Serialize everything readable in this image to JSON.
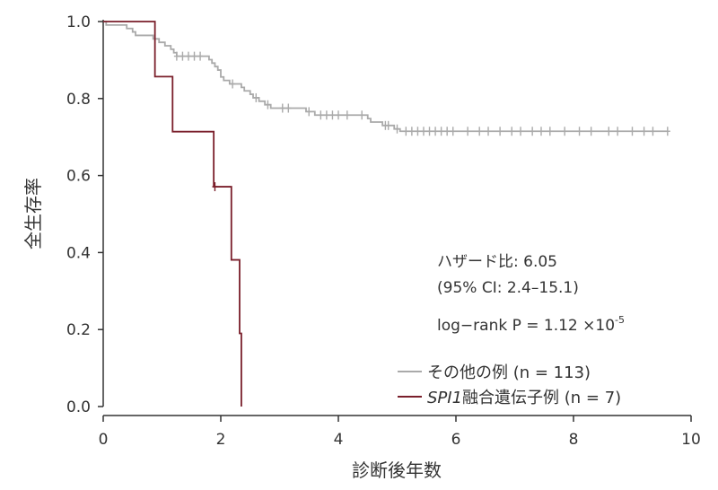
{
  "chart_data": {
    "type": "line",
    "subtype": "kaplan-meier",
    "title": "",
    "xlabel": "診断後年数",
    "ylabel": "全生存率",
    "xlim": [
      0,
      10
    ],
    "ylim": [
      0,
      1
    ],
    "xticks": [
      0,
      2,
      4,
      6,
      8,
      10
    ],
    "yticks": [
      0.0,
      0.2,
      0.4,
      0.6,
      0.8,
      1.0
    ],
    "xtick_labels": [
      "0",
      "2",
      "4",
      "6",
      "8",
      "10"
    ],
    "ytick_labels": [
      "0.0",
      "0.2",
      "0.4",
      "0.6",
      "0.8",
      "1.0"
    ],
    "grid": false,
    "legend_position": "bottom-right",
    "annotations": {
      "hazard_ratio": "ハザード比: 6.05",
      "ci": "(95% CI: 2.4–15.1)",
      "logrank": "log−rank P = 1.12 ×10",
      "logrank_exp": "-5"
    },
    "series": [
      {
        "name_prefix": "",
        "name_italic": "",
        "name": "その他の例 (n = 113)",
        "color": "#aaaaaa",
        "steps": [
          [
            0,
            1.0
          ],
          [
            0.05,
            0.991
          ],
          [
            0.4,
            0.982
          ],
          [
            0.5,
            0.973
          ],
          [
            0.55,
            0.964
          ],
          [
            0.85,
            0.955
          ],
          [
            0.95,
            0.946
          ],
          [
            1.05,
            0.937
          ],
          [
            1.15,
            0.928
          ],
          [
            1.2,
            0.919
          ],
          [
            1.25,
            0.91
          ],
          [
            1.8,
            0.901
          ],
          [
            1.85,
            0.892
          ],
          [
            1.9,
            0.883
          ],
          [
            1.95,
            0.874
          ],
          [
            2.0,
            0.856
          ],
          [
            2.05,
            0.847
          ],
          [
            2.15,
            0.838
          ],
          [
            2.35,
            0.829
          ],
          [
            2.4,
            0.82
          ],
          [
            2.5,
            0.811
          ],
          [
            2.55,
            0.802
          ],
          [
            2.65,
            0.793
          ],
          [
            2.75,
            0.784
          ],
          [
            2.85,
            0.775
          ],
          [
            3.45,
            0.766
          ],
          [
            3.6,
            0.757
          ],
          [
            4.05,
            0.757
          ],
          [
            4.5,
            0.748
          ],
          [
            4.55,
            0.739
          ],
          [
            4.75,
            0.73
          ],
          [
            4.95,
            0.721
          ],
          [
            5.05,
            0.715
          ],
          [
            9.6,
            0.715
          ]
        ],
        "censored": [
          [
            1.25,
            0.91
          ],
          [
            1.35,
            0.91
          ],
          [
            1.45,
            0.91
          ],
          [
            1.55,
            0.91
          ],
          [
            1.65,
            0.91
          ],
          [
            2.2,
            0.838
          ],
          [
            2.6,
            0.802
          ],
          [
            2.8,
            0.784
          ],
          [
            3.05,
            0.775
          ],
          [
            3.15,
            0.775
          ],
          [
            3.5,
            0.766
          ],
          [
            3.7,
            0.757
          ],
          [
            3.8,
            0.757
          ],
          [
            3.9,
            0.757
          ],
          [
            4.0,
            0.757
          ],
          [
            4.15,
            0.757
          ],
          [
            4.4,
            0.757
          ],
          [
            4.8,
            0.73
          ],
          [
            4.85,
            0.73
          ],
          [
            5.0,
            0.721
          ],
          [
            5.15,
            0.715
          ],
          [
            5.25,
            0.715
          ],
          [
            5.35,
            0.715
          ],
          [
            5.45,
            0.715
          ],
          [
            5.55,
            0.715
          ],
          [
            5.65,
            0.715
          ],
          [
            5.75,
            0.715
          ],
          [
            5.85,
            0.715
          ],
          [
            5.95,
            0.715
          ],
          [
            6.2,
            0.715
          ],
          [
            6.4,
            0.715
          ],
          [
            6.55,
            0.715
          ],
          [
            6.75,
            0.715
          ],
          [
            6.95,
            0.715
          ],
          [
            7.1,
            0.715
          ],
          [
            7.3,
            0.715
          ],
          [
            7.45,
            0.715
          ],
          [
            7.6,
            0.715
          ],
          [
            7.85,
            0.715
          ],
          [
            8.1,
            0.715
          ],
          [
            8.3,
            0.715
          ],
          [
            8.6,
            0.715
          ],
          [
            8.75,
            0.715
          ],
          [
            9.0,
            0.715
          ],
          [
            9.2,
            0.715
          ],
          [
            9.35,
            0.715
          ],
          [
            9.6,
            0.715
          ]
        ]
      },
      {
        "name_prefix": "",
        "name_italic": "SPI1",
        "name": "融合遺伝子例 (n = 7)",
        "color": "#7a1f2b",
        "steps": [
          [
            0,
            1.0
          ],
          [
            0.88,
            1.0
          ],
          [
            0.88,
            0.857
          ],
          [
            1.18,
            0.857
          ],
          [
            1.18,
            0.714
          ],
          [
            1.88,
            0.714
          ],
          [
            1.88,
            0.571
          ],
          [
            2.18,
            0.571
          ],
          [
            2.18,
            0.381
          ],
          [
            2.32,
            0.381
          ],
          [
            2.32,
            0.19
          ],
          [
            2.35,
            0.19
          ],
          [
            2.35,
            0.0
          ]
        ],
        "censored": [
          [
            1.9,
            0.571
          ]
        ]
      }
    ]
  }
}
